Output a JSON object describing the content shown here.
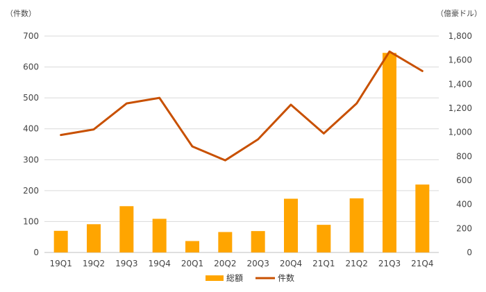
{
  "chart_data": {
    "type": "bar+line",
    "categories": [
      "19Q1",
      "19Q2",
      "19Q3",
      "19Q4",
      "20Q1",
      "20Q2",
      "20Q3",
      "20Q4",
      "21Q1",
      "21Q2",
      "21Q3",
      "21Q4"
    ],
    "left_axis": {
      "unit_label": "（件数）",
      "ylim": [
        0,
        700
      ],
      "ticks": [
        "0",
        "100",
        "200",
        "300",
        "400",
        "500",
        "600",
        "700"
      ]
    },
    "right_axis": {
      "unit_label": "（億豪ドル）",
      "ylim": [
        0,
        1800
      ],
      "ticks": [
        "0",
        "200",
        "400",
        "600",
        "800",
        "1,000",
        "1,200",
        "1,400",
        "1,600",
        "1,800"
      ]
    },
    "series": [
      {
        "name": "総額",
        "type": "bar",
        "axis": "right",
        "color": "#FFA500",
        "values": [
          180,
          235,
          385,
          280,
          95,
          170,
          178,
          447,
          230,
          450,
          1660,
          565
        ]
      },
      {
        "name": "件数",
        "type": "line",
        "axis": "left",
        "color": "#C85000",
        "values": [
          380,
          398,
          482,
          500,
          343,
          298,
          366,
          478,
          385,
          482,
          650,
          587
        ]
      }
    ],
    "grid": true,
    "legend_position": "bottom"
  }
}
